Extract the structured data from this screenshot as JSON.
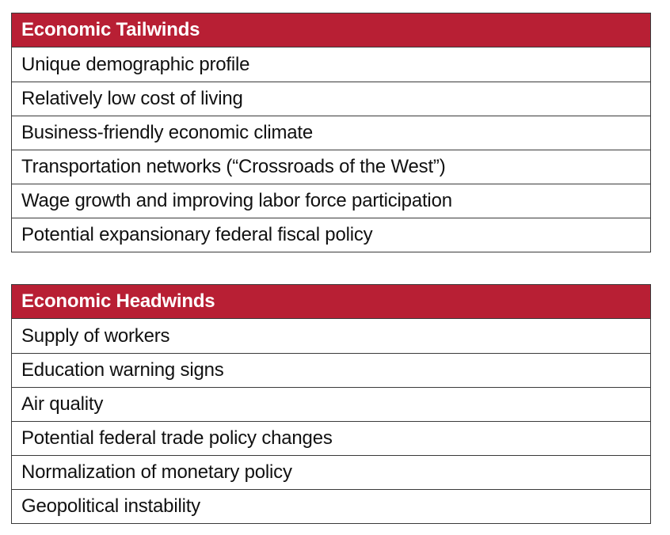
{
  "tailwinds": {
    "title": "Economic Tailwinds",
    "items": [
      "Unique demographic profile",
      "Relatively low cost of living",
      "Business-friendly economic climate",
      "Transportation networks (“Crossroads of the West”)",
      "Wage growth and improving labor force participation",
      "Potential expansionary federal fiscal policy"
    ]
  },
  "headwinds": {
    "title": "Economic Headwinds",
    "items": [
      "Supply of workers",
      "Education warning signs",
      "Air quality",
      "Potential federal trade policy changes",
      "Normalization of monetary policy",
      "Geopolitical instability"
    ]
  },
  "colors": {
    "header_background": "#b81f34",
    "header_text": "#ffffff",
    "border": "#3a3a3a"
  }
}
